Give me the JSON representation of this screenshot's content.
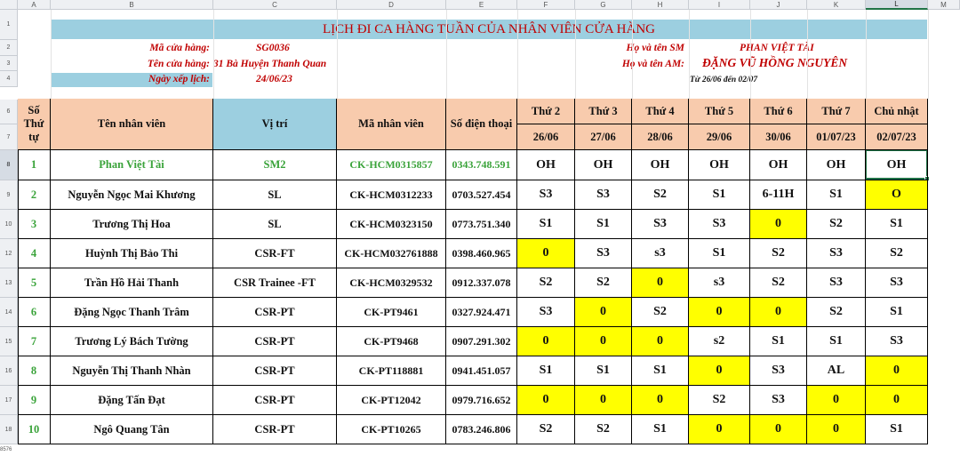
{
  "columns": [
    "A",
    "B",
    "C",
    "D",
    "E",
    "F",
    "G",
    "H",
    "I",
    "J",
    "K",
    "L",
    "M"
  ],
  "rows": [
    "1",
    "2",
    "3",
    "4",
    "5",
    "6",
    "7",
    "8",
    "9",
    "10",
    "11",
    "12",
    "13",
    "14",
    "15",
    "16",
    "17",
    "18"
  ],
  "title": "LỊCH ĐI CA HÀNG TUẦN CỦA NHÂN VIÊN CỬA HÀNG",
  "info": {
    "store_code_label": "Mã cửa hàng:",
    "store_code": "SG0036",
    "store_name_label": "Tên cửa hàng:",
    "store_name": "31 Bà Huyện Thanh Quan",
    "schedule_date_label": "Ngày xếp lịch:",
    "schedule_date": "24/06/23",
    "sm_label": "Họ và tên SM",
    "sm_name": "PHAN VIỆT TÀI",
    "am_label": "Họ và tên AM:",
    "am_name": "ĐẶNG VŨ HỒNG NGUYÊN",
    "range": "Từ 26/06 đến 02/07"
  },
  "header": {
    "no": "Số Thứ tự",
    "name": "Tên nhân viên",
    "position": "Vị trí",
    "emp_id": "Mã nhân viên",
    "phone": "Số điện thoại",
    "days": [
      {
        "day": "Thứ 2",
        "date": "26/06"
      },
      {
        "day": "Thứ 3",
        "date": "27/06"
      },
      {
        "day": "Thứ 4",
        "date": "28/06"
      },
      {
        "day": "Thứ 5",
        "date": "29/06"
      },
      {
        "day": "Thứ 6",
        "date": "30/06"
      },
      {
        "day": "Thứ 7",
        "date": "01/07/23"
      },
      {
        "day": "Chủ nhật",
        "date": "02/07/23"
      }
    ]
  },
  "staff": [
    {
      "no": "1",
      "name": "Phan Việt Tài",
      "position": "SM2",
      "emp_id": "CK-HCM0315857",
      "phone": "0343.748.591",
      "shifts": [
        "OH",
        "OH",
        "OH",
        "OH",
        "OH",
        "OH",
        "OH"
      ],
      "highlight": [
        false,
        false,
        false,
        false,
        false,
        false,
        false
      ]
    },
    {
      "no": "2",
      "name": "Nguyễn Ngọc Mai Khương",
      "position": "SL",
      "emp_id": "CK-HCM0312233",
      "phone": "0703.527.454",
      "shifts": [
        "S3",
        "S3",
        "S2",
        "S1",
        "6-11H",
        "S1",
        "O"
      ],
      "highlight": [
        false,
        false,
        false,
        false,
        false,
        false,
        true
      ]
    },
    {
      "no": "3",
      "name": "Trương Thị Hoa",
      "position": "SL",
      "emp_id": "CK-HCM0323150",
      "phone": "0773.751.340",
      "shifts": [
        "S1",
        "S1",
        "S3",
        "S3",
        "0",
        "S2",
        "S1"
      ],
      "highlight": [
        false,
        false,
        false,
        false,
        true,
        false,
        false
      ]
    },
    {
      "no": "4",
      "name": "Huỳnh Thị Bảo Thi",
      "position": "CSR-FT",
      "emp_id": "CK-HCM032761888",
      "phone": "0398.460.965",
      "shifts": [
        "0",
        "S3",
        "s3",
        "S1",
        "S2",
        "S3",
        "S2"
      ],
      "highlight": [
        true,
        false,
        false,
        false,
        false,
        false,
        false
      ]
    },
    {
      "no": "5",
      "name": "Trần Hồ Hải Thanh",
      "position": "CSR Trainee -FT",
      "emp_id": "CK-HCM0329532",
      "phone": "0912.337.078",
      "shifts": [
        "S2",
        "S2",
        "0",
        "s3",
        "S2",
        "S3",
        "S3"
      ],
      "highlight": [
        false,
        false,
        true,
        false,
        false,
        false,
        false
      ]
    },
    {
      "no": "6",
      "name": "Đặng Ngọc Thanh Trâm",
      "position": "CSR-PT",
      "emp_id": "CK-PT9461",
      "phone": "0327.924.471",
      "shifts": [
        "S3",
        "0",
        "S2",
        "0",
        "0",
        "S2",
        "S1"
      ],
      "highlight": [
        false,
        true,
        false,
        true,
        true,
        false,
        false
      ]
    },
    {
      "no": "7",
      "name": "Trương Lý Bách Tường",
      "position": "CSR-PT",
      "emp_id": "CK-PT9468",
      "phone": "0907.291.302",
      "shifts": [
        "0",
        "0",
        "0",
        "s2",
        "S1",
        "S1",
        "S3"
      ],
      "highlight": [
        true,
        true,
        true,
        false,
        false,
        false,
        false
      ]
    },
    {
      "no": "8",
      "name": "Nguyễn Thị Thanh Nhàn",
      "position": "CSR-PT",
      "emp_id": "CK-PT118881",
      "phone": "0941.451.057",
      "shifts": [
        "S1",
        "S1",
        "S1",
        "0",
        "S3",
        "AL",
        "0"
      ],
      "highlight": [
        false,
        false,
        false,
        true,
        false,
        false,
        true
      ]
    },
    {
      "no": "9",
      "name": "Đặng Tấn Đạt",
      "position": "CSR-PT",
      "emp_id": "CK-PT12042",
      "phone": "0979.716.652",
      "shifts": [
        "0",
        "0",
        "0",
        "S2",
        "S3",
        "0",
        "0"
      ],
      "highlight": [
        true,
        true,
        true,
        false,
        false,
        true,
        true
      ]
    },
    {
      "no": "10",
      "name": "Ngô Quang Tân",
      "position": "CSR-PT",
      "emp_id": "CK-PT10265",
      "phone": "0783.246.806",
      "shifts": [
        "S2",
        "S2",
        "S1",
        "0",
        "0",
        "0",
        "S1"
      ],
      "highlight": [
        false,
        false,
        false,
        true,
        true,
        true,
        false
      ]
    }
  ],
  "corner_label": "8576",
  "colors": {
    "title_bg": "#9ccfe0",
    "header_bg": "#f8cbad",
    "highlight": "#ffff00",
    "selection": "#217346",
    "accent_text": "#c00000",
    "first_row_text": "#3aa33a"
  }
}
